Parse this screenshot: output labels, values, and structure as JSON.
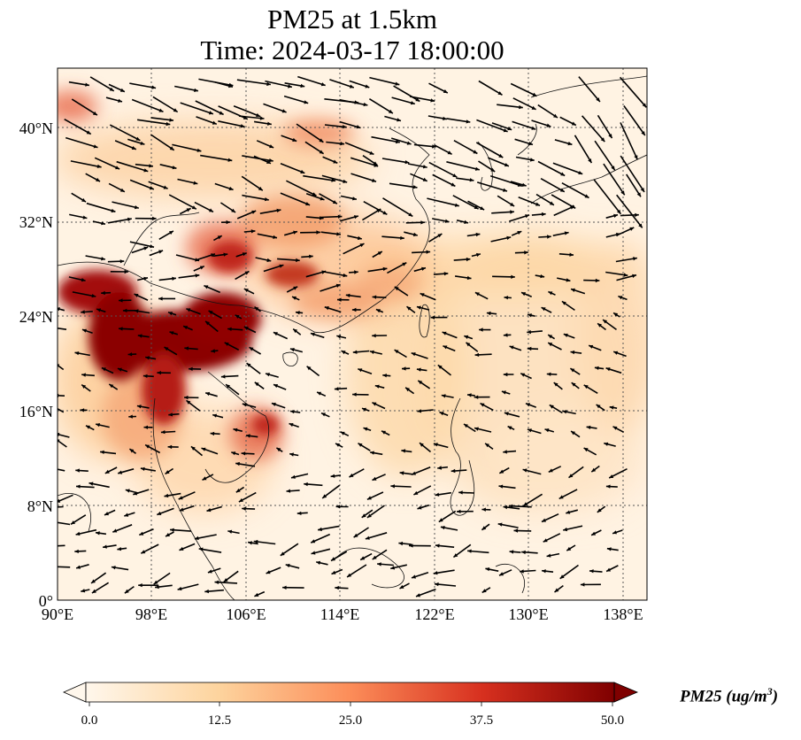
{
  "title": {
    "line1": "PM25 at 1.5km",
    "line2": "Time: 2024-03-17 18:00:00"
  },
  "map": {
    "extent": {
      "lon_min": 90,
      "lon_max": 140,
      "lat_min": 0,
      "lat_max": 45
    },
    "grid": true,
    "lat_ticks": [
      "0°",
      "8°N",
      "16°N",
      "24°N",
      "32°N",
      "40°N"
    ],
    "lon_ticks": [
      "90°E",
      "98°E",
      "106°E",
      "114°E",
      "122°E",
      "130°E",
      "138°E"
    ],
    "field": "PM25",
    "wind_vectors": true
  },
  "colorbar": {
    "colormap": "OrRd",
    "colors": [
      "#fff7ec",
      "#fdd49e",
      "#fc8d59",
      "#d7301f",
      "#7f0000"
    ],
    "ticks": [
      "0.0",
      "12.5",
      "25.0",
      "37.5",
      "50.0"
    ],
    "label_main": "PM25 (ug/m",
    "label_sup": "3",
    "label_end": ")"
  }
}
